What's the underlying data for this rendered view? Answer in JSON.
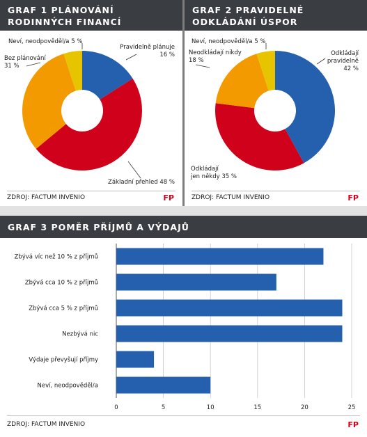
{
  "chart1": {
    "title_line1": "GRAF 1 PLÁNOVÁNÍ",
    "title_line2": "RODINNÝCH FINANCÍ",
    "source": "ZDROJ: FACTUM INVENIO",
    "logo": "FP",
    "labels": [
      {
        "line1": "Neví, neodpověděl/a 5 %",
        "line2": ""
      },
      {
        "line1": "Pravidelně plánuje",
        "line2": "16 %"
      },
      {
        "line1": "Bez plánování",
        "line2": "31 %"
      },
      {
        "line1": "Základní přehled 48 %",
        "line2": ""
      }
    ]
  },
  "chart2": {
    "title_line1": "GRAF 2 PRAVIDELNÉ",
    "title_line2": "ODKLÁDÁNÍ ÚSPOR",
    "source": "ZDROJ: FACTUM INVENIO",
    "logo": "FP",
    "labels": [
      {
        "line1": "Neví, neodpověděl/a 5 %",
        "line2": ""
      },
      {
        "line1": "Neodkládají nikdy",
        "line2": "18 %"
      },
      {
        "line1": "Odkládají",
        "line2": "pravidelně",
        "line3": "42 %"
      },
      {
        "line1": "Odkládají",
        "line2": "jen někdy 35 %"
      }
    ]
  },
  "chart3": {
    "title": "GRAF 3 POMĚR PŘÍJMŮ A VÝDAJŮ",
    "source": "ZDROJ: FACTUM INVENIO",
    "logo": "FP"
  },
  "chart_data": [
    {
      "type": "pie",
      "donut": true,
      "title": "GRAF 1 PLÁNOVÁNÍ RODINNÝCH FINANCÍ",
      "categories": [
        "Pravidelně plánuje",
        "Základní přehled",
        "Bez plánování",
        "Neví, neodpověděl/a"
      ],
      "values": [
        16,
        48,
        31,
        5
      ],
      "colors": [
        "#2460ae",
        "#d0021b",
        "#f39a00",
        "#e6c400"
      ]
    },
    {
      "type": "pie",
      "donut": true,
      "title": "GRAF 2 PRAVIDELNÉ ODKLÁDÁNÍ ÚSPOR",
      "categories": [
        "Odkládají pravidelně",
        "Odkládají jen někdy",
        "Neodkládají nikdy",
        "Neví, neodpověděl/a"
      ],
      "values": [
        42,
        35,
        18,
        5
      ],
      "colors": [
        "#2460ae",
        "#d0021b",
        "#f39a00",
        "#e6c400"
      ]
    },
    {
      "type": "bar",
      "orientation": "horizontal",
      "title": "GRAF 3 POMĚR PŘÍJMŮ A VÝDAJŮ",
      "categories": [
        "Zbývá víc než 10 % z příjmů",
        "Zbývá cca 10 % z příjmů",
        "Zbývá cca 5 % z příjmů",
        "Nezbývá nic",
        "Výdaje převyšují příjmy",
        "Neví, neodpověděl/a"
      ],
      "values": [
        22,
        17,
        24,
        24,
        4,
        10
      ],
      "xlim": [
        0,
        25
      ],
      "xticks": [
        "0",
        "5",
        "10",
        "15",
        "20",
        "25"
      ],
      "grid": true,
      "color": "#2460ae"
    }
  ]
}
